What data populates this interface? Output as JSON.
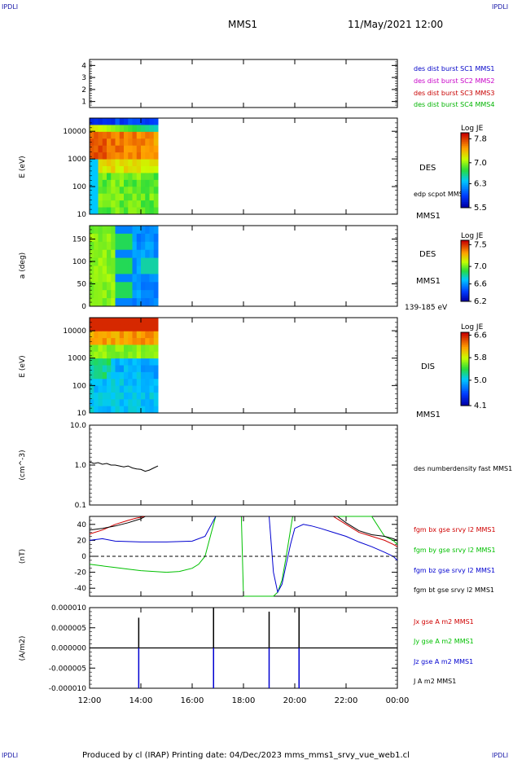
{
  "header": {
    "corner_label": "IPDLI",
    "spacecraft": "MMS1",
    "datetime": "11/May/2021 12:00"
  },
  "footer": {
    "text": "Produced by cl (IRAP)   Printing date: 04/Dec/2023   mms_mms1_srvy_vue_web1.cl"
  },
  "colors": {
    "mms1": "#0000c8",
    "mms2": "#c800c8",
    "mms3": "#c80000",
    "mms4": "#00b400",
    "bx": "#d00000",
    "by": "#00c000",
    "bz": "#0000d0",
    "bt": "#000000"
  },
  "chart_data": [
    {
      "type": "table",
      "id": "burst",
      "ylim": [
        0.5,
        4.5
      ],
      "yticks": [
        "1",
        "2",
        "3",
        "4"
      ],
      "legend": [
        "des dist burst SC1 MMS1",
        "des dist burst SC2 MMS2",
        "des dist burst SC3 MMS3",
        "des dist burst SC4 MMS4"
      ]
    },
    {
      "type": "heatmap",
      "id": "des_energy",
      "ylabel": "E (eV)",
      "ylim": [
        10,
        30000
      ],
      "log_y": true,
      "yticks": [
        "10",
        "100",
        "1000",
        "10000"
      ],
      "x_extent": [
        "12:00",
        "14:40"
      ],
      "rows": 14,
      "cols": 16,
      "label": "DES",
      "sub_label": "MMS1",
      "legend": [
        "edp scpot MMS1"
      ],
      "colorbar": {
        "title": "Log JE",
        "ticks": [
          "7.8",
          "7.0",
          "6.3",
          "5.5"
        ],
        "min": 5.5,
        "max": 8.0
      }
    },
    {
      "type": "heatmap",
      "id": "des_pitch",
      "ylabel": "a (deg)",
      "ylim": [
        0,
        180
      ],
      "yticks": [
        "0",
        "50",
        "100",
        "150"
      ],
      "x_extent": [
        "12:00",
        "14:40"
      ],
      "rows": 10,
      "cols": 16,
      "label": "DES",
      "sub_label": "MMS1",
      "energy_range": "139-185 eV",
      "colorbar": {
        "title": "Log JE",
        "ticks": [
          "7.5",
          "7.0",
          "6.6",
          "6.2"
        ],
        "min": 6.2,
        "max": 7.6
      }
    },
    {
      "type": "heatmap",
      "id": "dis_energy",
      "ylabel": "E (eV)",
      "ylim": [
        10,
        30000
      ],
      "log_y": true,
      "yticks": [
        "10",
        "100",
        "1000",
        "10000"
      ],
      "x_extent": [
        "12:00",
        "14:40"
      ],
      "rows": 14,
      "cols": 16,
      "label": "DIS",
      "sub_label": "MMS1",
      "colorbar": {
        "title": "Log JE",
        "ticks": [
          "6.6",
          "5.8",
          "5.0",
          "4.1"
        ],
        "min": 4.1,
        "max": 6.7
      }
    },
    {
      "type": "line",
      "id": "density",
      "ylabel": "(cm^-3)",
      "ylim": [
        0.1,
        10.0
      ],
      "log_y": true,
      "yticks": [
        "0.1",
        "1.0",
        "10.0"
      ],
      "series": [
        {
          "name": "des numberdensity fast MMS1",
          "color": "#000000",
          "x": [
            "12:00",
            "12:10",
            "12:20",
            "12:30",
            "12:40",
            "12:50",
            "13:00",
            "13:10",
            "13:20",
            "13:30",
            "13:40",
            "13:50",
            "14:00",
            "14:10",
            "14:20",
            "14:30",
            "14:40"
          ],
          "y": [
            1.2,
            1.1,
            1.15,
            1.05,
            1.1,
            1.0,
            1.0,
            0.95,
            0.9,
            0.95,
            0.85,
            0.8,
            0.78,
            0.7,
            0.75,
            0.85,
            0.95
          ]
        }
      ]
    },
    {
      "type": "line",
      "id": "bfield",
      "ylabel": "(nT)",
      "ylim": [
        -50,
        50
      ],
      "yticks": [
        "-40",
        "-20",
        "0",
        "20",
        "40"
      ],
      "series": [
        {
          "name": "fgm bx gse srvy l2 MMS1",
          "color": "#d00000",
          "x": [
            "12:00",
            "12:30",
            "13:00",
            "13:30",
            "13:50",
            "14:00",
            "14:10",
            "21:30",
            "22:00",
            "22:30",
            "23:00",
            "23:30",
            "23:50",
            "00:00"
          ],
          "y": [
            28,
            33,
            40,
            45,
            48,
            49,
            50,
            50,
            40,
            30,
            25,
            20,
            15,
            12
          ]
        },
        {
          "name": "fgm by gse srvy l2 MMS1",
          "color": "#00c000",
          "x": [
            "12:00",
            "12:30",
            "13:00",
            "13:30",
            "14:00",
            "14:30",
            "15:00",
            "15:30",
            "16:00",
            "16:15",
            "16:30",
            "16:45",
            "16:55",
            "17:55",
            "18:00",
            "18:05",
            "19:10",
            "19:20",
            "19:30",
            "19:40",
            "19:55",
            "23:00",
            "23:30",
            "23:50",
            "00:00"
          ],
          "y": [
            -10,
            -12,
            -14,
            -16,
            -18,
            -19,
            -20,
            -19,
            -15,
            -10,
            0,
            30,
            50,
            50,
            -50,
            -50,
            -50,
            -45,
            -30,
            0,
            50,
            50,
            25,
            20,
            15
          ]
        },
        {
          "name": "fgm bz gse srvy l2 MMS1",
          "color": "#0000d0",
          "x": [
            "12:00",
            "12:30",
            "13:00",
            "14:00",
            "15:00",
            "16:00",
            "16:30",
            "16:45",
            "16:55",
            "19:00",
            "19:10",
            "19:20",
            "19:30",
            "19:40",
            "19:50",
            "20:00",
            "20:20",
            "20:40",
            "21:00",
            "21:30",
            "22:00",
            "22:30",
            "23:00",
            "23:30",
            "23:50",
            "00:00"
          ],
          "y": [
            20,
            22,
            19,
            18,
            18,
            19,
            25,
            40,
            50,
            50,
            -20,
            -45,
            -35,
            -10,
            15,
            35,
            40,
            38,
            35,
            30,
            25,
            18,
            12,
            5,
            0,
            -5
          ]
        },
        {
          "name": "fgm bt gse srvy l2 MMS1",
          "color": "#000000",
          "x": [
            "12:00",
            "12:30",
            "13:00",
            "13:30",
            "14:00",
            "14:10",
            "21:40",
            "22:00",
            "22:30",
            "23:00",
            "23:30",
            "23:50",
            "00:00"
          ],
          "y": [
            33,
            35,
            38,
            42,
            47,
            50,
            50,
            42,
            32,
            27,
            25,
            22,
            20
          ]
        }
      ]
    },
    {
      "type": "line",
      "id": "current",
      "ylabel": "(A/m2)",
      "ylim": [
        -1e-05,
        1e-05
      ],
      "yticks": [
        "-0.000010",
        "-0.000005",
        "0.000000",
        "0.000005",
        "0.000010"
      ],
      "xticks": [
        "12:00",
        "14:00",
        "16:00",
        "18:00",
        "20:00",
        "22:00",
        "00:00"
      ],
      "spikes": [
        {
          "t": "13:55",
          "y": 7.5e-06
        },
        {
          "t": "13:55",
          "y": -1e-05
        },
        {
          "t": "16:50",
          "y": 1e-05
        },
        {
          "t": "16:50",
          "y": -1e-05
        },
        {
          "t": "19:00",
          "y": 9e-06
        },
        {
          "t": "19:00",
          "y": -1e-05
        },
        {
          "t": "20:10",
          "y": 1e-05
        },
        {
          "t": "20:10",
          "y": -1e-05
        }
      ],
      "series": [
        {
          "name": "Jx gse A m2 MMS1",
          "color": "#d00000"
        },
        {
          "name": "Jy gse A m2 MMS1",
          "color": "#00c000"
        },
        {
          "name": "Jz gse A m2 MMS1",
          "color": "#0000d0"
        },
        {
          "name": "J A m2 MMS1",
          "color": "#000000"
        }
      ]
    }
  ]
}
